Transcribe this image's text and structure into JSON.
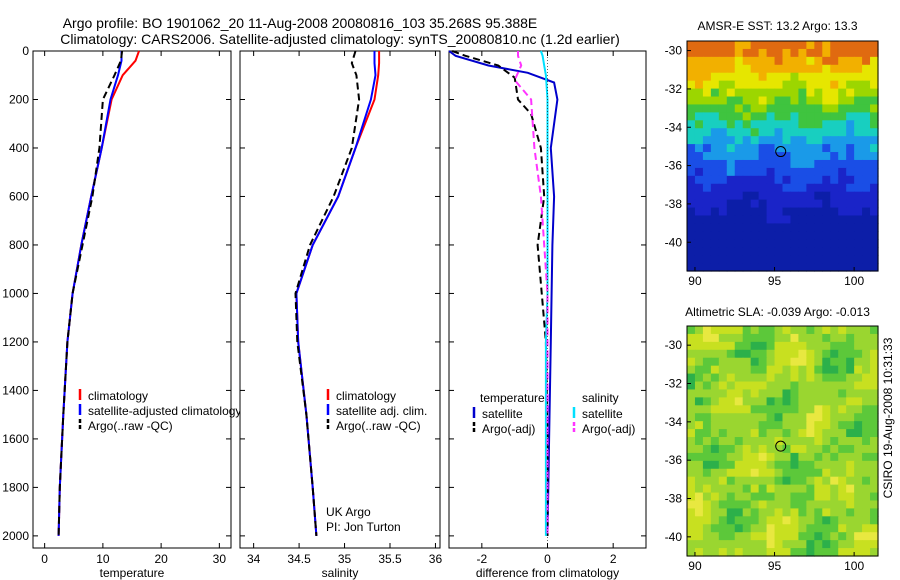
{
  "header": {
    "line1": "Argo profile: BO 1901062_20 11-Aug-2008 20080816_103 35.268S 95.388E",
    "line2": "Climatology: CARS2006. Satellite-adjusted climatology: synTS_20080810.nc (1.2d earlier)"
  },
  "credit": "CSIRO 19-Aug-2008 10:31:33",
  "colors": {
    "climatology": "#ff0000",
    "satellite": "#0000ff",
    "argo": "#000000",
    "temp_sat_diff": "#0000cc",
    "sal_sat_diff": "#00e0ff",
    "sal_argo_diff": "#ff33ff"
  },
  "chart_data": [
    {
      "type": "line",
      "id": "temperature",
      "xlabel": "temperature",
      "xlim": [
        -2,
        32
      ],
      "ylim": [
        2050,
        0
      ],
      "xticks": [
        "0",
        "10",
        "20",
        "30"
      ],
      "xtick_values": [
        0,
        10,
        20,
        30
      ],
      "yticks": [
        "0",
        "200",
        "400",
        "600",
        "800",
        "1000",
        "1200",
        "1400",
        "1600",
        "1800",
        "2000"
      ],
      "ytick_values": [
        0,
        200,
        400,
        600,
        800,
        1000,
        1200,
        1400,
        1600,
        1800,
        2000
      ],
      "legend": [
        "climatology",
        "satellite-adjusted climatology",
        "Argo(..raw -QC)"
      ],
      "series": [
        {
          "name": "climatology",
          "color": "#ff0000",
          "dash": "",
          "x": [
            16.2,
            15.6,
            13.4,
            11.5,
            9.8,
            8.0,
            6.3,
            4.8,
            3.9,
            3.2,
            2.6,
            2.4
          ],
          "y": [
            0,
            40,
            100,
            200,
            400,
            600,
            800,
            1000,
            1200,
            1500,
            1800,
            2000
          ]
        },
        {
          "name": "satellite-adjusted climatology",
          "color": "#0000ff",
          "dash": "",
          "x": [
            13.2,
            13.2,
            12.6,
            11.3,
            9.8,
            8.0,
            6.3,
            4.8,
            3.9,
            3.2,
            2.6,
            2.4
          ],
          "y": [
            0,
            40,
            100,
            200,
            400,
            600,
            800,
            1000,
            1200,
            1500,
            1800,
            2000
          ]
        },
        {
          "name": "Argo(..raw -QC)",
          "color": "#000000",
          "dash": "7,4",
          "x": [
            13.3,
            13.1,
            12.0,
            10.0,
            9.4,
            8.2,
            6.5,
            4.8,
            3.9,
            3.2,
            2.6,
            2.4
          ],
          "y": [
            0,
            40,
            100,
            200,
            400,
            600,
            800,
            1000,
            1200,
            1500,
            1800,
            2000
          ]
        }
      ]
    },
    {
      "type": "line",
      "id": "salinity",
      "xlabel": "salinity",
      "xlim": [
        33.85,
        36.05
      ],
      "ylim": [
        2050,
        0
      ],
      "xticks": [
        "34",
        "34.5",
        "35",
        "35.5",
        "36"
      ],
      "xtick_values": [
        34,
        34.5,
        35,
        35.5,
        36
      ],
      "yticks": [],
      "ytick_values": [],
      "legend": [
        "climatology",
        "satellite adj. clim.",
        "Argo(..raw -QC)"
      ],
      "annotation": [
        "UK Argo",
        "PI: Jon Turton"
      ],
      "series": [
        {
          "name": "climatology",
          "color": "#ff0000",
          "dash": "",
          "x": [
            35.38,
            35.38,
            35.37,
            35.33,
            35.12,
            34.93,
            34.65,
            34.47,
            34.49,
            34.58,
            34.65,
            34.69
          ],
          "y": [
            0,
            50,
            100,
            200,
            400,
            600,
            800,
            1000,
            1200,
            1500,
            1800,
            2000
          ]
        },
        {
          "name": "satellite adj. clim.",
          "color": "#0000ff",
          "dash": "",
          "x": [
            35.33,
            35.33,
            35.34,
            35.29,
            35.12,
            34.93,
            34.65,
            34.47,
            34.49,
            34.58,
            34.65,
            34.69
          ],
          "y": [
            0,
            50,
            100,
            200,
            400,
            600,
            800,
            1000,
            1200,
            1500,
            1800,
            2000
          ]
        },
        {
          "name": "Argo(..raw -QC)",
          "color": "#000000",
          "dash": "7,4",
          "x": [
            35.12,
            35.08,
            35.13,
            35.16,
            35.08,
            34.88,
            34.62,
            34.46,
            34.48,
            34.58,
            34.65,
            34.69
          ],
          "y": [
            0,
            50,
            100,
            200,
            400,
            600,
            800,
            1000,
            1200,
            1500,
            1800,
            2000
          ]
        }
      ]
    },
    {
      "type": "line",
      "id": "difference",
      "xlabel": "difference from climatology",
      "xlim": [
        -3,
        3
      ],
      "ylim": [
        2050,
        0
      ],
      "xticks": [
        "-2",
        "0",
        "2"
      ],
      "xtick_values": [
        -2,
        0,
        2
      ],
      "yticks": [],
      "ytick_values": [],
      "legend_titles": [
        "temperature",
        "salinity"
      ],
      "legend": [
        "satellite",
        "Argo(-adj)",
        "satellite",
        "Argo(-adj)"
      ],
      "series": [
        {
          "name": "temperature satellite",
          "color": "#0000cc",
          "dash": "",
          "x": [
            -3.0,
            -2.8,
            -1.8,
            -0.6,
            0.2,
            0.3,
            0.1,
            0.2,
            0.15,
            0.1,
            0.05,
            0.0
          ],
          "y": [
            0,
            20,
            60,
            90,
            130,
            200,
            400,
            600,
            800,
            1200,
            1600,
            2000
          ]
        },
        {
          "name": "temperature Argo(-adj)",
          "color": "#000000",
          "dash": "7,4",
          "x": [
            -2.9,
            -2.5,
            -1.5,
            -1.0,
            -0.9,
            -0.5,
            -0.2,
            -0.1,
            -0.3,
            -0.05,
            0.0,
            0.0
          ],
          "y": [
            0,
            20,
            60,
            110,
            200,
            260,
            400,
            600,
            800,
            1200,
            1600,
            2000
          ]
        },
        {
          "name": "salinity satellite",
          "color": "#00e0ff",
          "dash": "",
          "x": [
            -0.2,
            -0.15,
            -0.1,
            -0.05,
            0.0,
            0.0,
            0.0,
            0.0,
            0.0,
            -0.05,
            -0.05,
            -0.05
          ],
          "y": [
            0,
            20,
            60,
            100,
            200,
            400,
            600,
            800,
            1000,
            1200,
            1600,
            2000
          ]
        },
        {
          "name": "salinity Argo(-adj)",
          "color": "#ff33ff",
          "dash": "7,4",
          "x": [
            -0.9,
            -0.9,
            -0.8,
            -1.0,
            -0.5,
            -0.4,
            -0.2,
            -0.1,
            0.0,
            0.0,
            0.0,
            0.0
          ],
          "y": [
            0,
            20,
            60,
            120,
            200,
            400,
            600,
            800,
            1000,
            1200,
            1600,
            2000
          ]
        }
      ]
    },
    {
      "type": "heatmap",
      "id": "sst",
      "title": "AMSR-E SST: 13.2 Argo: 13.3",
      "xlim": [
        89.5,
        101.5
      ],
      "ylim": [
        -41.5,
        -29.5
      ],
      "xticks": [
        "90",
        "95",
        "100"
      ],
      "xtick_values": [
        90,
        95,
        100
      ],
      "yticks": [
        "-30",
        "-32",
        "-34",
        "-36",
        "-38",
        "-40"
      ],
      "ytick_values": [
        -30,
        -32,
        -34,
        -36,
        -38,
        -40
      ],
      "marker": {
        "lon": 95.388,
        "lat": -35.268
      },
      "band_colors": [
        "#e06a10",
        "#f2b000",
        "#e6e600",
        "#9cd600",
        "#3fc43f",
        "#18cfc0",
        "#1a9ae8",
        "#1a4ee6",
        "#1a24c8",
        "#0c1ea8"
      ],
      "band_lats": [
        -30.3,
        -31.2,
        -32.0,
        -32.8,
        -33.6,
        -34.6,
        -35.6,
        -36.8,
        -38.2,
        -41.5
      ]
    },
    {
      "type": "heatmap",
      "id": "sla",
      "title": "Altimetric SLA: -0.039 Argo: -0.013",
      "xlim": [
        89.5,
        101.5
      ],
      "ylim": [
        -41.0,
        -29.0
      ],
      "xticks": [
        "90",
        "95",
        "100"
      ],
      "xtick_values": [
        90,
        95,
        100
      ],
      "yticks": [
        "-30",
        "-32",
        "-34",
        "-36",
        "-38",
        "-40"
      ],
      "ytick_values": [
        -30,
        -32,
        -34,
        -36,
        -38,
        -40
      ],
      "marker": {
        "lon": 95.388,
        "lat": -35.268
      },
      "palette": [
        "#2cb04a",
        "#5cc83a",
        "#9ad630",
        "#c8e020",
        "#e8e840"
      ]
    }
  ]
}
